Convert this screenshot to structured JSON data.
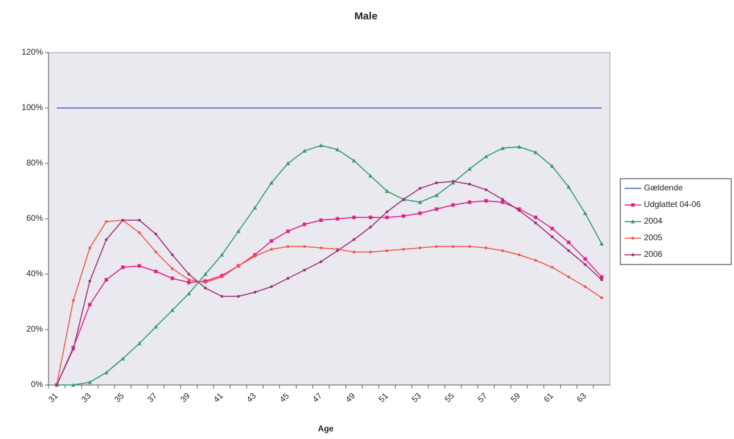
{
  "chart_data": {
    "type": "line",
    "title": "Male",
    "x_label": "Age",
    "categories": [
      "31",
      null,
      "33",
      null,
      "35",
      null,
      "37",
      null,
      "39",
      null,
      "41",
      null,
      "43",
      null,
      "45",
      null,
      "47",
      null,
      "49",
      null,
      "51",
      null,
      "53",
      null,
      "55",
      null,
      "57",
      null,
      "59",
      null,
      "61",
      null,
      "63",
      null
    ],
    "ylim": [
      0,
      120
    ],
    "yticks": [
      {
        "value": 0,
        "label": "0%"
      },
      {
        "value": 20,
        "label": "20%"
      },
      {
        "value": 40,
        "label": "40%"
      },
      {
        "value": 60,
        "label": "60%"
      },
      {
        "value": 80,
        "label": "80%"
      },
      {
        "value": 100,
        "label": "100%"
      },
      {
        "value": 120,
        "label": "120%"
      }
    ],
    "legend": "right",
    "series": [
      {
        "name": "Gældende",
        "color": "#4a5fc1",
        "marker": "none",
        "values": [
          100,
          100,
          100,
          100,
          100,
          100,
          100,
          100,
          100,
          100,
          100,
          100,
          100,
          100,
          100,
          100,
          100,
          100,
          100,
          100,
          100,
          100,
          100,
          100,
          100,
          100,
          100,
          100,
          100,
          100,
          100,
          100,
          100,
          100
        ]
      },
      {
        "name": "Udglattet 04-06",
        "color": "#e0208a",
        "marker": "square",
        "values": [
          0,
          13.5,
          29,
          38,
          42.5,
          43,
          41,
          38.5,
          37,
          37.5,
          39.5,
          43,
          47,
          52,
          55.5,
          58,
          59.5,
          60,
          60.5,
          60.5,
          60.5,
          61,
          62,
          63.5,
          65,
          66,
          66.5,
          66,
          63.5,
          60.5,
          56.5,
          51.5,
          45.5,
          39
        ]
      },
      {
        "name": "2004",
        "color": "#2e9b6a",
        "marker": "triangle",
        "values": [
          0,
          0,
          1,
          4.5,
          9.5,
          15,
          21,
          27,
          33,
          40,
          47,
          55.5,
          64,
          73,
          80,
          84.5,
          86.5,
          85,
          81,
          75.5,
          70,
          67,
          66,
          68.5,
          73,
          78,
          82.5,
          85.5,
          86,
          84,
          79,
          71.5,
          62,
          51
        ]
      },
      {
        "name": "2005",
        "color": "#f05a4a",
        "marker": "dot",
        "values": [
          0,
          30.5,
          49.5,
          59,
          59.5,
          55,
          48,
          42,
          38,
          37,
          39,
          43,
          46.5,
          49,
          50,
          50,
          49.5,
          49,
          48,
          48,
          48.5,
          49,
          49.5,
          50,
          50,
          50,
          49.5,
          48.5,
          47,
          45,
          42.5,
          39,
          35.5,
          31.5
        ]
      },
      {
        "name": "2006",
        "color": "#a0307a",
        "marker": "dot",
        "values": [
          0,
          13,
          37.5,
          52.5,
          59.5,
          59.5,
          54.5,
          47,
          40,
          35,
          32,
          32,
          33.5,
          35.5,
          38.5,
          41.5,
          44.5,
          48.5,
          52.5,
          57,
          62.5,
          67,
          71,
          73,
          73.5,
          72.5,
          70.5,
          67,
          63,
          58.5,
          53.5,
          48.5,
          43.5,
          38
        ]
      }
    ]
  }
}
